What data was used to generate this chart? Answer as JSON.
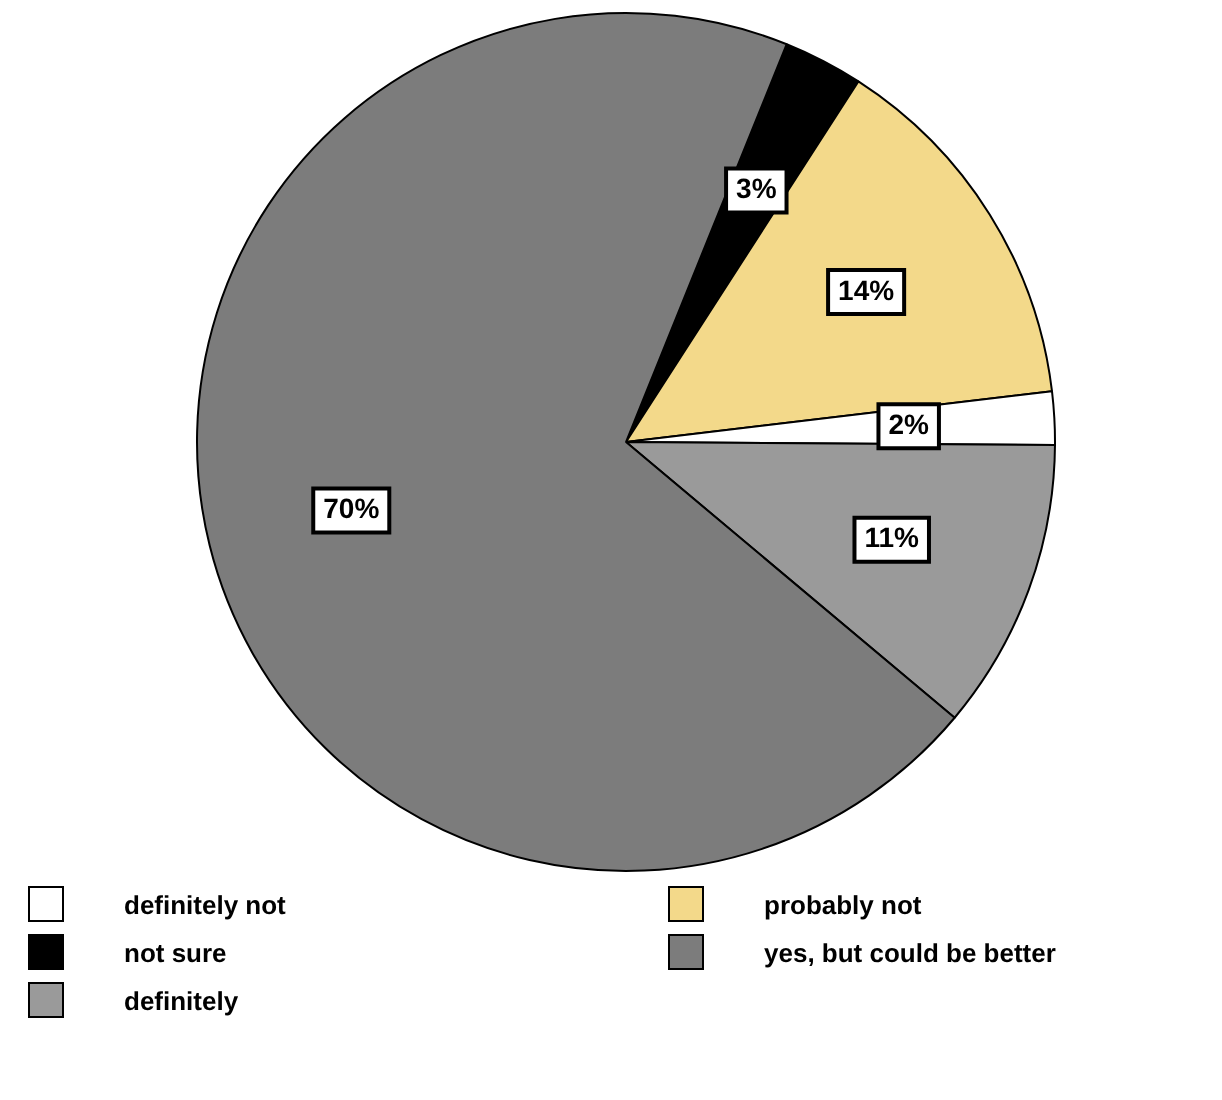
{
  "chart_data": {
    "type": "pie",
    "categories": [
      "not sure",
      "probably not",
      "definitely not",
      "definitely",
      "yes, but could be better"
    ],
    "values": [
      3,
      14,
      2,
      11,
      70
    ],
    "colors": [
      "#000000",
      "#f3d98a",
      "#ffffff",
      "#9a9a9a",
      "#7c7c7c"
    ],
    "value_labels": [
      "3%",
      "14%",
      "2%",
      "11%",
      "70%"
    ],
    "legend": "bottom"
  }
}
